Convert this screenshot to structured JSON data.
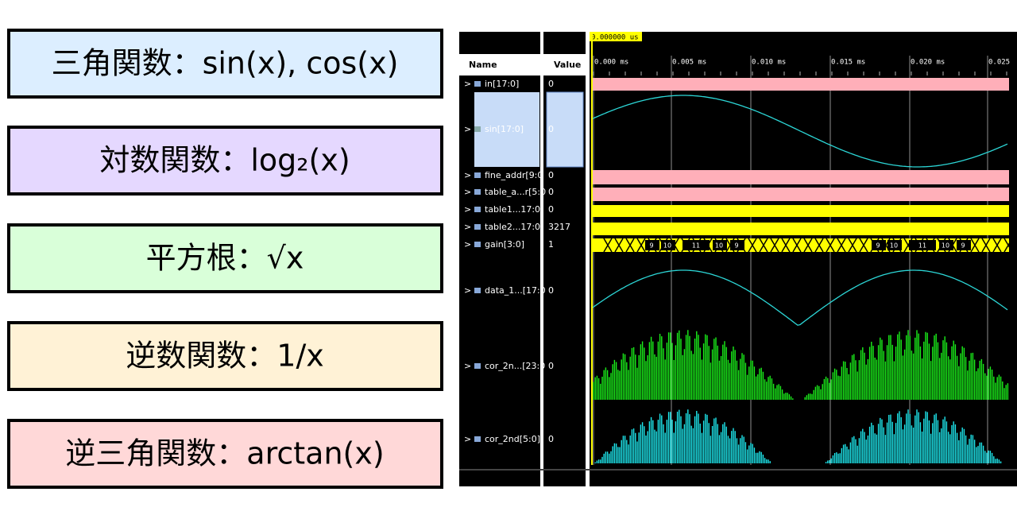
{
  "labels": [
    {
      "text": "三角関数：sin(x), cos(x)"
    },
    {
      "text": "対数関数：log₂(x)"
    },
    {
      "text": "平方根：√x"
    },
    {
      "text": "逆数関数：1/x"
    },
    {
      "text": "逆三角関数：arctan(x)"
    }
  ],
  "waveform": {
    "cursor_label": "0.000000 us",
    "header": {
      "name": "Name",
      "value": "Value"
    },
    "time_labels": [
      "0.000 ms",
      "0.005 ms",
      "0.010 ms",
      "0.015 ms",
      "0.020 ms",
      "0.025"
    ],
    "signals": [
      {
        "name": "in[17:0]",
        "value": "0"
      },
      {
        "name": "sin[17:0]",
        "value": "0"
      },
      {
        "name": "fine_addr[9:0",
        "value": "0"
      },
      {
        "name": "table_a...r[5:0",
        "value": "0"
      },
      {
        "name": "table1...17:0]",
        "value": "0"
      },
      {
        "name": "table2...17:0]",
        "value": "3217"
      },
      {
        "name": "gain[3:0]",
        "value": "1"
      },
      {
        "name": "data_1...[17:0",
        "value": "0"
      },
      {
        "name": "cor_2n...[23:0",
        "value": "0"
      },
      {
        "name": "cor_2nd[5:0]",
        "value": "0"
      }
    ],
    "gain_labels": [
      "9",
      "10",
      "11",
      "10",
      "9",
      "9",
      "10",
      "11",
      "10",
      "9"
    ]
  }
}
